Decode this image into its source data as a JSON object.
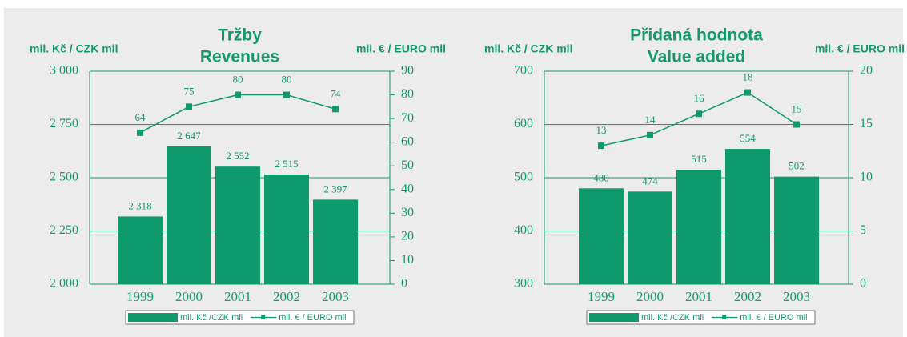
{
  "chart_data": [
    {
      "type": "bar",
      "title": "Tržby",
      "subtitle": "Revenues",
      "ylabel": "mil. Kč / CZK mil",
      "y2label": "mil. € / EURO mil",
      "categories": [
        "1999",
        "2000",
        "2001",
        "2002",
        "2003"
      ],
      "series": [
        {
          "name": "mil. Kč /CZK mil",
          "color": "#0e9a6c",
          "values": [
            2318,
            2647,
            2552,
            2515,
            2397
          ],
          "value_labels": [
            "2 318",
            "2 647",
            "2 552",
            "2 515",
            "2 397"
          ]
        },
        {
          "name": "mil. € / EURO mil",
          "color": "#0e9a6c",
          "type": "line",
          "axis": "y2",
          "values": [
            64,
            75,
            80,
            80,
            74
          ]
        }
      ],
      "ylim": [
        2000,
        3000
      ],
      "yticks": [
        {
          "value": 2000,
          "label": "2 000"
        },
        {
          "value": 2250,
          "label": "2 250"
        },
        {
          "value": 2500,
          "label": "2 500"
        },
        {
          "value": 2750,
          "label": "2 750"
        },
        {
          "value": 3000,
          "label": "3 000"
        }
      ],
      "y2lim": [
        0,
        90
      ],
      "y2ticks": [
        0,
        10,
        20,
        30,
        40,
        50,
        60,
        70,
        80,
        90
      ],
      "grid": true
    },
    {
      "type": "bar",
      "title": "Přidaná hodnota",
      "subtitle": "Value added",
      "ylabel": "mil. Kč / CZK mil",
      "y2label": "mil. € / EURO mil",
      "categories": [
        "1999",
        "2000",
        "2001",
        "2002",
        "2003"
      ],
      "series": [
        {
          "name": "mil. Kč /CZK mil",
          "color": "#0e9a6c",
          "values": [
            480,
            474,
            515,
            554,
            502
          ]
        },
        {
          "name": "mil. € / EURO mil",
          "color": "#0e9a6c",
          "type": "line",
          "axis": "y2",
          "values": [
            13,
            14,
            16,
            18,
            15
          ]
        }
      ],
      "ylim": [
        300,
        700
      ],
      "yticks": [
        300,
        400,
        500,
        600,
        700
      ],
      "y2lim": [
        0,
        20
      ],
      "y2ticks": [
        0,
        5,
        10,
        15,
        20
      ],
      "grid": true
    }
  ]
}
